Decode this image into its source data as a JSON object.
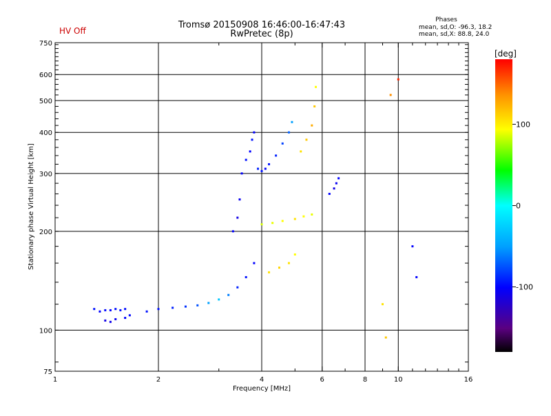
{
  "header": {
    "title_line1": "Tromsø 20150908 16:46:00-16:47:43",
    "title_line2": "RwPretec (8p)",
    "hv_status": "HV Off",
    "stats_title": "Phases",
    "stats_line1": "mean, sd,O: -96.3, 18.2",
    "stats_line2": "mean, sd,X:  88.8, 24.0"
  },
  "colorbar": {
    "unit_label": "[deg]",
    "range": [
      -180,
      180
    ],
    "ticks": [
      {
        "value": 100,
        "label": "100"
      },
      {
        "value": 0,
        "label": "0"
      },
      {
        "value": -100,
        "label": "-100"
      }
    ]
  },
  "chart_data": {
    "type": "scatter",
    "title": "Tromsø 20150908 16:46:00-16:47:43",
    "subtitle": "RwPretec (8p)",
    "xlabel": "Frequency [MHz]",
    "ylabel": "Stationary phase Virtual Height [km]",
    "x_scale": "log",
    "y_scale": "log",
    "xlim": [
      1,
      16
    ],
    "ylim": [
      75,
      750
    ],
    "x_ticks": [
      {
        "value": 1,
        "label": "1"
      },
      {
        "value": 2,
        "label": "2"
      },
      {
        "value": 4,
        "label": "4"
      },
      {
        "value": 6,
        "label": "6"
      },
      {
        "value": 8,
        "label": "8"
      },
      {
        "value": 10,
        "label": "10"
      },
      {
        "value": 16,
        "label": "16"
      }
    ],
    "y_ticks": [
      {
        "value": 75,
        "label": "75"
      },
      {
        "value": 100,
        "label": "100"
      },
      {
        "value": 200,
        "label": "200"
      },
      {
        "value": 300,
        "label": "300"
      },
      {
        "value": 400,
        "label": "400"
      },
      {
        "value": 500,
        "label": "500"
      },
      {
        "value": 600,
        "label": "600"
      },
      {
        "value": 750,
        "label": "750"
      }
    ],
    "x_gridlines": [
      2,
      4,
      6,
      8,
      10
    ],
    "y_gridlines": [
      100,
      200,
      300,
      400,
      500,
      600
    ],
    "color_by": "phase (deg)",
    "series": [
      {
        "values": [
          [
            1.3,
            116,
            -95
          ],
          [
            1.35,
            114,
            -100
          ],
          [
            1.4,
            115,
            -98
          ],
          [
            1.45,
            115,
            -100
          ],
          [
            1.5,
            116,
            -96
          ],
          [
            1.55,
            115,
            -95
          ],
          [
            1.6,
            116,
            -97
          ]
        ]
      },
      {
        "values": [
          [
            1.4,
            107,
            -110
          ],
          [
            1.45,
            106,
            -108
          ],
          [
            1.5,
            108,
            -105
          ],
          [
            1.6,
            109,
            -100
          ],
          [
            1.65,
            111,
            -98
          ]
        ]
      },
      {
        "values": [
          [
            1.85,
            114,
            -95
          ],
          [
            2.0,
            116,
            -95
          ],
          [
            2.2,
            117,
            -90
          ],
          [
            2.4,
            118,
            -85
          ],
          [
            2.6,
            119,
            -75
          ],
          [
            2.8,
            121,
            -50
          ],
          [
            3.0,
            124,
            -30
          ],
          [
            3.2,
            128,
            -60
          ],
          [
            3.4,
            135,
            -90
          ],
          [
            3.6,
            145,
            -95
          ],
          [
            3.8,
            160,
            -100
          ]
        ]
      },
      {
        "values": [
          [
            3.3,
            200,
            -100
          ],
          [
            3.4,
            220,
            -110
          ],
          [
            3.45,
            250,
            -105
          ],
          [
            3.5,
            300,
            -100
          ],
          [
            3.6,
            330,
            -95
          ],
          [
            3.7,
            350,
            -100
          ],
          [
            3.75,
            380,
            -95
          ],
          [
            3.8,
            400,
            -100
          ]
        ]
      },
      {
        "values": [
          [
            3.9,
            310,
            -90
          ],
          [
            4.0,
            305,
            -95
          ],
          [
            4.1,
            310,
            -100
          ],
          [
            4.2,
            320,
            -95
          ],
          [
            4.4,
            340,
            -90
          ],
          [
            4.6,
            370,
            -80
          ],
          [
            4.8,
            400,
            -70
          ],
          [
            4.9,
            430,
            -50
          ]
        ]
      },
      {
        "values": [
          [
            4.0,
            210,
            90
          ],
          [
            4.3,
            212,
            95
          ],
          [
            4.6,
            215,
            100
          ],
          [
            5.0,
            218,
            110
          ],
          [
            5.3,
            222,
            100
          ],
          [
            5.6,
            225,
            95
          ]
        ]
      },
      {
        "values": [
          [
            4.2,
            150,
            110
          ],
          [
            4.5,
            155,
            115
          ],
          [
            4.8,
            160,
            110
          ],
          [
            5.0,
            170,
            100
          ]
        ]
      },
      {
        "values": [
          [
            5.2,
            350,
            110
          ],
          [
            5.4,
            380,
            120
          ],
          [
            5.6,
            420,
            130
          ],
          [
            5.7,
            480,
            120
          ],
          [
            5.75,
            550,
            100
          ]
        ]
      },
      {
        "values": [
          [
            6.3,
            260,
            -100
          ],
          [
            6.5,
            270,
            -110
          ],
          [
            6.6,
            280,
            -105
          ],
          [
            6.7,
            290,
            -100
          ]
        ]
      },
      {
        "values": [
          [
            9.0,
            120,
            110
          ],
          [
            9.2,
            95,
            120
          ],
          [
            9.5,
            520,
            140
          ],
          [
            10.0,
            580,
            170
          ],
          [
            11.0,
            180,
            -100
          ],
          [
            11.3,
            145,
            -100
          ]
        ]
      }
    ]
  }
}
